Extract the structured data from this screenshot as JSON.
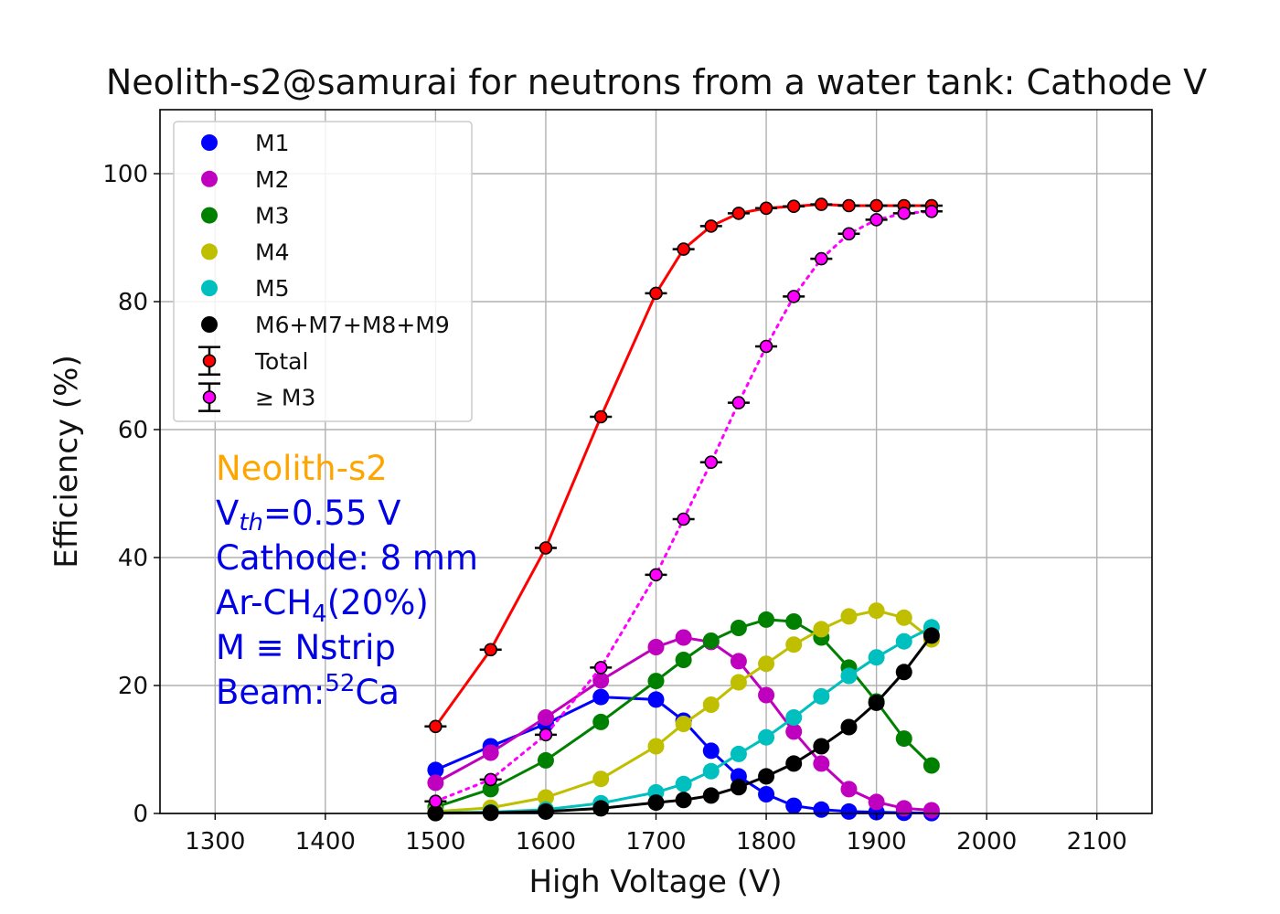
{
  "chart_data": {
    "type": "line",
    "title": "Neolith-s2@samurai for neutrons from a water tank: Cathode V",
    "xlabel": "High Voltage (V)",
    "ylabel": "Efficiency (%)",
    "xlim": [
      1250,
      2150
    ],
    "ylim": [
      0,
      110
    ],
    "xticks": [
      1300,
      1400,
      1500,
      1600,
      1700,
      1800,
      1900,
      2000,
      2100
    ],
    "yticks": [
      0,
      20,
      40,
      60,
      80,
      100
    ],
    "grid": true,
    "legend_position": "upper-left",
    "x": [
      1500,
      1550,
      1600,
      1650,
      1700,
      1725,
      1750,
      1775,
      1800,
      1825,
      1850,
      1875,
      1900,
      1925,
      1950
    ],
    "series": [
      {
        "name": "M1",
        "color": "#0000ff",
        "marker": "circle",
        "line": "solid",
        "values": [
          6.8,
          10.5,
          14.0,
          18.2,
          17.8,
          14.5,
          9.8,
          5.8,
          3.0,
          1.2,
          0.6,
          0.3,
          0.2,
          0.1,
          0.05
        ]
      },
      {
        "name": "M2",
        "color": "#bf00bf",
        "marker": "circle",
        "line": "solid",
        "values": [
          4.8,
          9.5,
          15.0,
          20.8,
          26.0,
          27.5,
          26.8,
          23.8,
          18.5,
          12.8,
          7.8,
          3.8,
          1.8,
          0.8,
          0.5
        ]
      },
      {
        "name": "M3",
        "color": "#008000",
        "marker": "circle",
        "line": "solid",
        "values": [
          1.0,
          3.8,
          8.3,
          14.3,
          20.7,
          24.0,
          27.0,
          29.0,
          30.3,
          30.0,
          27.5,
          22.8,
          17.5,
          11.7,
          7.5
        ]
      },
      {
        "name": "M4",
        "color": "#bfbf00",
        "marker": "circle",
        "line": "solid",
        "values": [
          0.3,
          0.9,
          2.5,
          5.4,
          10.5,
          14.0,
          17.0,
          20.5,
          23.4,
          26.4,
          28.8,
          30.8,
          31.7,
          30.6,
          27.2
        ]
      },
      {
        "name": "M5",
        "color": "#00bfbf",
        "marker": "circle",
        "line": "solid",
        "values": [
          0.1,
          0.2,
          0.6,
          1.6,
          3.3,
          4.6,
          6.6,
          9.3,
          11.9,
          15.0,
          18.3,
          21.5,
          24.4,
          26.9,
          29.1
        ]
      },
      {
        "name": "M6+M7+M8+M9",
        "color": "#000000",
        "marker": "circle",
        "line": "solid",
        "values": [
          0.05,
          0.1,
          0.3,
          0.8,
          1.7,
          2.1,
          2.8,
          4.1,
          5.8,
          7.8,
          10.5,
          13.5,
          17.3,
          22.1,
          27.8
        ]
      },
      {
        "name": "Total",
        "color": "#ff0000",
        "marker": "circle-errorbar",
        "line": "solid",
        "values": [
          13.6,
          25.6,
          41.5,
          62.0,
          81.3,
          88.2,
          91.8,
          93.8,
          94.6,
          94.9,
          95.2,
          95.0,
          95.0,
          95.0,
          95.0
        ]
      },
      {
        "name": " ≥ M3",
        "color": "#ff00ff",
        "marker": "circle-errorbar",
        "line": "dotted",
        "values": [
          1.9,
          5.3,
          12.3,
          22.8,
          37.3,
          46.0,
          54.9,
          64.2,
          73.0,
          80.8,
          86.7,
          90.6,
          92.8,
          93.8,
          94.1
        ]
      }
    ]
  },
  "annotations": [
    {
      "lines": [
        "Neolith-s2"
      ],
      "color": "#ffa500"
    }
  ],
  "annotation_block": {
    "color": "#0000e6",
    "line1": "Neolith-s2",
    "line2_main": "V",
    "line2_sub": "th",
    "line2_rest": "=0.55 V",
    "line3": "Cathode: 8 mm",
    "line4_main": "Ar-CH",
    "line4_sub": "4",
    "line4_rest": "(20%)",
    "line5": "M ≡ Nstrip",
    "line6_main": "Beam:",
    "line6_sup": "52",
    "line6_rest": "Ca"
  }
}
